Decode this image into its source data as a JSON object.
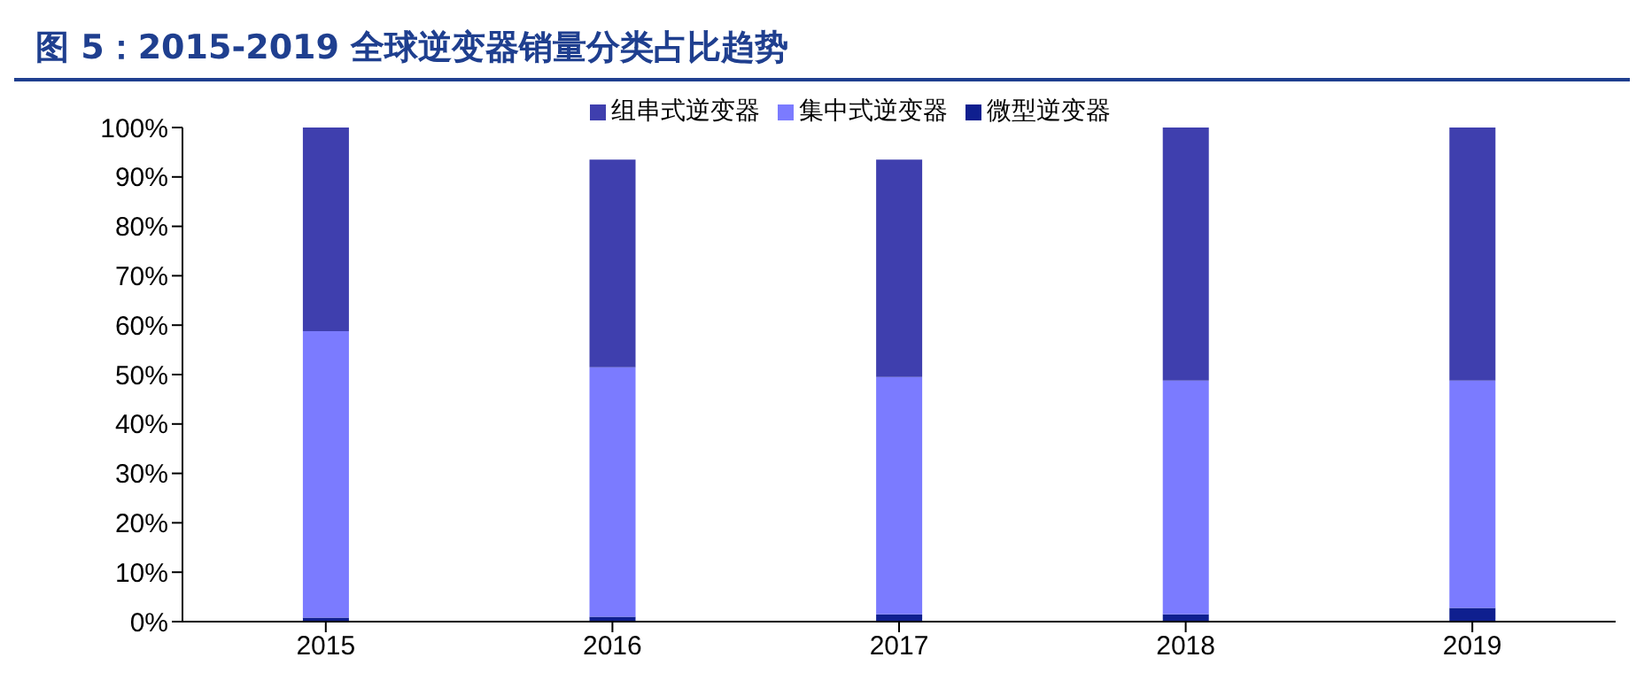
{
  "chart_data": {
    "type": "bar",
    "title": "图 5：2015-2019 全球逆变器销量分类占比趋势",
    "categories": [
      "2015",
      "2016",
      "2017",
      "2018",
      "2019"
    ],
    "stacked": true,
    "series": [
      {
        "name": "微型逆变器",
        "color": "#0f1f8f",
        "values": [
          0.8,
          1,
          1.5,
          1.5,
          2.8
        ]
      },
      {
        "name": "集中式逆变器",
        "color": "#7b7bff",
        "values": [
          58,
          50.5,
          48,
          47.3,
          46
        ]
      },
      {
        "name": "组串式逆变器",
        "color": "#3f3fae",
        "values": [
          41.2,
          42,
          44,
          51.2,
          51.2
        ]
      }
    ],
    "ylim": [
      0,
      100
    ],
    "yticks": [
      {
        "value": 0,
        "label": "0%"
      },
      {
        "value": 10,
        "label": "10%"
      },
      {
        "value": 20,
        "label": "20%"
      },
      {
        "value": 30,
        "label": "30%"
      },
      {
        "value": 40,
        "label": "40%"
      },
      {
        "value": 50,
        "label": "50%"
      },
      {
        "value": 60,
        "label": "60%"
      },
      {
        "value": 70,
        "label": "70%"
      },
      {
        "value": 80,
        "label": "80%"
      },
      {
        "value": 90,
        "label": "90%"
      },
      {
        "value": 100,
        "label": "100%"
      }
    ],
    "grid": false,
    "legend": "top"
  }
}
